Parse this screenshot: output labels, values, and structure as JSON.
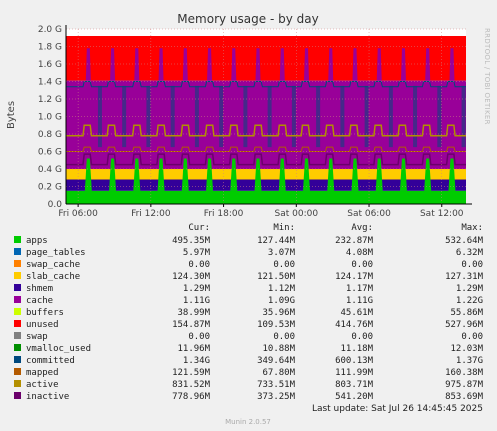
{
  "chart_data": {
    "type": "area",
    "title": "Memory usage - by day",
    "ylabel": "Bytes",
    "side_label": "RRDTOOL / TOBI OETIKER",
    "ylim": [
      0,
      2.0
    ],
    "y_unit": "G",
    "y_ticks": [
      "0.0",
      "0.2 G",
      "0.4 G",
      "0.6 G",
      "0.8 G",
      "1.0 G",
      "1.2 G",
      "1.4 G",
      "1.6 G",
      "1.8 G",
      "2.0 G"
    ],
    "x_ticks": [
      "Fri 06:00",
      "Fri 12:00",
      "Fri 18:00",
      "Sat 00:00",
      "Sat 06:00",
      "Sat 12:00"
    ],
    "x_range_hours": [
      0,
      33
    ],
    "x_tick_hours": [
      1,
      7,
      13,
      19,
      25,
      31
    ],
    "spike_hours": [
      1.8,
      3.8,
      5.8,
      7.8,
      9.8,
      11.8,
      13.8,
      15.8,
      17.8,
      19.8,
      21.8,
      23.8,
      25.8,
      27.8,
      29.8,
      31.8
    ],
    "stack_levels_G": {
      "apps": 0.15,
      "shmem": 0.12,
      "cache_top": 0.28,
      "slab_top": 0.4,
      "buffers_top": 1.41,
      "unused_top": 1.92
    },
    "line_levels_G": {
      "committed": 1.34,
      "active": 0.78,
      "inactive": 0.45,
      "mapped": 0.6
    },
    "legend_headers": [
      "Cur:",
      "Min:",
      "Avg:",
      "Max:"
    ],
    "legend": [
      {
        "name": "apps",
        "color": "#00cc00",
        "cur": "495.35M",
        "min": "127.44M",
        "avg": "232.87M",
        "max": "532.64M"
      },
      {
        "name": "page_tables",
        "color": "#0066b3",
        "cur": "5.97M",
        "min": "3.07M",
        "avg": "4.08M",
        "max": "6.32M"
      },
      {
        "name": "swap_cache",
        "color": "#ff8000",
        "cur": "0.00",
        "min": "0.00",
        "avg": "0.00",
        "max": "0.00"
      },
      {
        "name": "slab_cache",
        "color": "#ffcc00",
        "cur": "124.30M",
        "min": "121.50M",
        "avg": "124.17M",
        "max": "127.31M"
      },
      {
        "name": "shmem",
        "color": "#330099",
        "cur": "1.29M",
        "min": "1.12M",
        "avg": "1.17M",
        "max": "1.29M"
      },
      {
        "name": "cache",
        "color": "#990099",
        "cur": "1.11G",
        "min": "1.09G",
        "avg": "1.11G",
        "max": "1.22G"
      },
      {
        "name": "buffers",
        "color": "#ccff00",
        "cur": "38.99M",
        "min": "35.96M",
        "avg": "45.61M",
        "max": "55.86M"
      },
      {
        "name": "unused",
        "color": "#ff0000",
        "cur": "154.87M",
        "min": "109.53M",
        "avg": "414.76M",
        "max": "527.96M"
      },
      {
        "name": "swap",
        "color": "#808080",
        "cur": "0.00",
        "min": "0.00",
        "avg": "0.00",
        "max": "0.00"
      },
      {
        "name": "vmalloc_used",
        "color": "#008f00",
        "cur": "11.96M",
        "min": "10.88M",
        "avg": "11.18M",
        "max": "12.03M"
      },
      {
        "name": "committed",
        "color": "#00487d",
        "cur": "1.34G",
        "min": "349.64M",
        "avg": "600.13M",
        "max": "1.37G"
      },
      {
        "name": "mapped",
        "color": "#b35a00",
        "cur": "121.59M",
        "min": "67.80M",
        "avg": "111.99M",
        "max": "160.38M"
      },
      {
        "name": "active",
        "color": "#b38f00",
        "cur": "831.52M",
        "min": "733.51M",
        "avg": "803.71M",
        "max": "975.87M"
      },
      {
        "name": "inactive",
        "color": "#6b006b",
        "cur": "778.96M",
        "min": "373.25M",
        "avg": "541.20M",
        "max": "853.69M"
      }
    ],
    "last_update": "Last update: Sat Jul 26 14:45:45 2025",
    "version": "Munin 2.0.57"
  }
}
